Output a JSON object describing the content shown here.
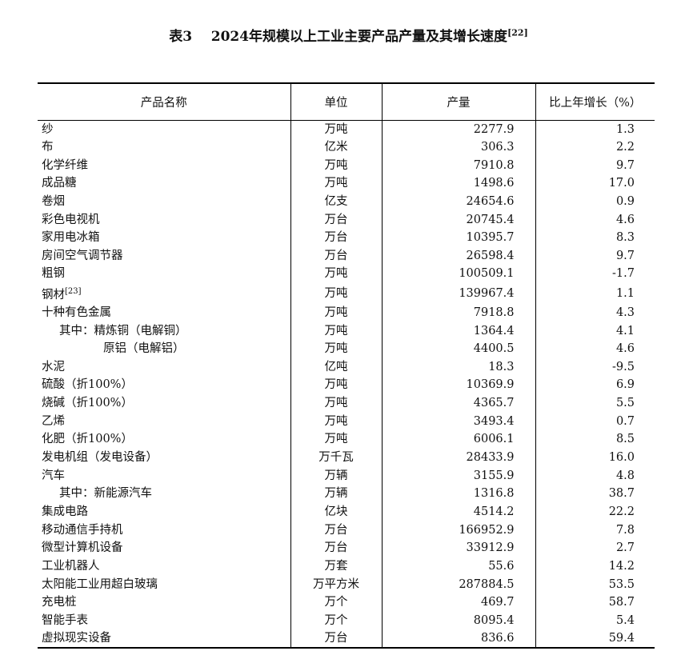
{
  "title": {
    "label": "表3",
    "text": "2024年规模以上工业主要产品产量及其增长速度",
    "note": "[22]"
  },
  "columns": [
    "产品名称",
    "单位",
    "产量",
    "比上年增长（%）"
  ],
  "rows": [
    {
      "name": "纱",
      "unit": "万吨",
      "output": "2277.9",
      "growth": "1.3"
    },
    {
      "name": "布",
      "unit": "亿米",
      "output": "306.3",
      "growth": "2.2"
    },
    {
      "name": "化学纤维",
      "unit": "万吨",
      "output": "7910.8",
      "growth": "9.7"
    },
    {
      "name": "成品糖",
      "unit": "万吨",
      "output": "1498.6",
      "growth": "17.0"
    },
    {
      "name": "卷烟",
      "unit": "亿支",
      "output": "24654.6",
      "growth": "0.9"
    },
    {
      "name": "彩色电视机",
      "unit": "万台",
      "output": "20745.4",
      "growth": "4.6"
    },
    {
      "name": "家用电冰箱",
      "unit": "万台",
      "output": "10395.7",
      "growth": "8.3"
    },
    {
      "name": "房间空气调节器",
      "unit": "万台",
      "output": "26598.4",
      "growth": "9.7"
    },
    {
      "name": "粗钢",
      "unit": "万吨",
      "output": "100509.1",
      "growth": "-1.7"
    },
    {
      "name": "钢材",
      "note": "[23]",
      "unit": "万吨",
      "output": "139967.4",
      "growth": "1.1"
    },
    {
      "name": "十种有色金属",
      "unit": "万吨",
      "output": "7918.8",
      "growth": "4.3"
    },
    {
      "name": "其中：精炼铜（电解铜）",
      "sub": 1,
      "unit": "万吨",
      "output": "1364.4",
      "growth": "4.1"
    },
    {
      "name": "原铝（电解铝）",
      "sub": 2,
      "unit": "万吨",
      "output": "4400.5",
      "growth": "4.6"
    },
    {
      "name": "水泥",
      "unit": "亿吨",
      "output": "18.3",
      "growth": "-9.5"
    },
    {
      "name": "硫酸（折100%）",
      "unit": "万吨",
      "output": "10369.9",
      "growth": "6.9"
    },
    {
      "name": "烧碱（折100%）",
      "unit": "万吨",
      "output": "4365.7",
      "growth": "5.5"
    },
    {
      "name": "乙烯",
      "unit": "万吨",
      "output": "3493.4",
      "growth": "0.7"
    },
    {
      "name": "化肥（折100%）",
      "unit": "万吨",
      "output": "6006.1",
      "growth": "8.5"
    },
    {
      "name": "发电机组（发电设备）",
      "unit": "万千瓦",
      "output": "28433.9",
      "growth": "16.0"
    },
    {
      "name": "汽车",
      "unit": "万辆",
      "output": "3155.9",
      "growth": "4.8"
    },
    {
      "name": "其中：新能源汽车",
      "sub": 1,
      "unit": "万辆",
      "output": "1316.8",
      "growth": "38.7"
    },
    {
      "name": "集成电路",
      "unit": "亿块",
      "output": "4514.2",
      "growth": "22.2"
    },
    {
      "name": "移动通信手持机",
      "unit": "万台",
      "output": "166952.9",
      "growth": "7.8"
    },
    {
      "name": "微型计算机设备",
      "unit": "万台",
      "output": "33912.9",
      "growth": "2.7"
    },
    {
      "name": "工业机器人",
      "unit": "万套",
      "output": "55.6",
      "growth": "14.2"
    },
    {
      "name": "太阳能工业用超白玻璃",
      "unit": "万平方米",
      "output": "287884.5",
      "growth": "53.5"
    },
    {
      "name": "充电桩",
      "unit": "万个",
      "output": "469.7",
      "growth": "58.7"
    },
    {
      "name": "智能手表",
      "unit": "万个",
      "output": "8095.4",
      "growth": "5.4"
    },
    {
      "name": "虚拟现实设备",
      "unit": "万台",
      "output": "836.6",
      "growth": "59.4"
    }
  ]
}
